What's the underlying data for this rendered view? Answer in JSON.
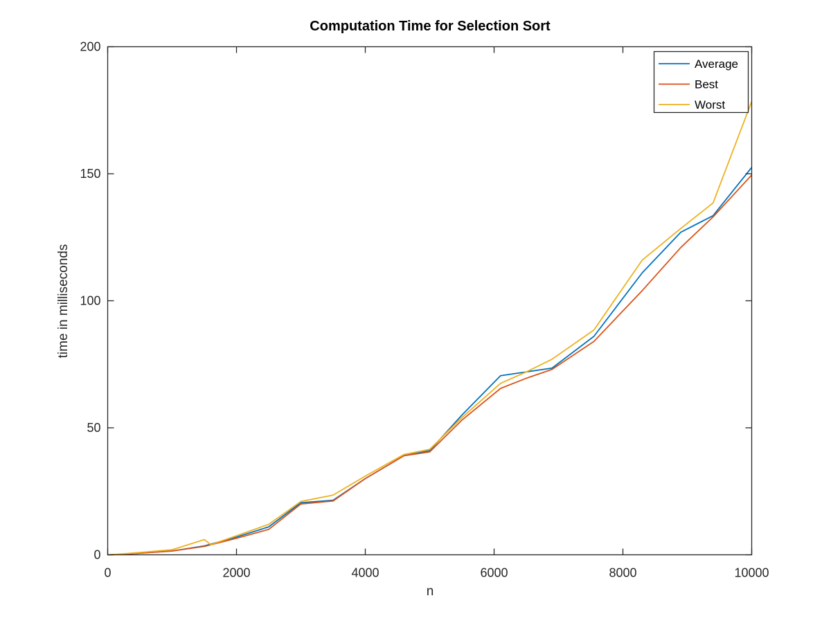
{
  "chart_data": {
    "type": "line",
    "title": "Computation Time for Selection Sort",
    "xlabel": "n",
    "ylabel": "time in milliseconds",
    "xlim": [
      0,
      10000
    ],
    "ylim": [
      0,
      200
    ],
    "xticks": [
      0,
      2000,
      4000,
      6000,
      8000,
      10000
    ],
    "yticks": [
      0,
      50,
      100,
      150,
      200
    ],
    "xtick_labels": [
      "0",
      "2000",
      "4000",
      "6000",
      "8000",
      "10000"
    ],
    "ytick_labels": [
      "0",
      "50",
      "100",
      "150",
      "200"
    ],
    "grid": false,
    "legend_position": "top-right",
    "series": [
      {
        "name": "Average",
        "color": "#0072BD",
        "x": [
          0,
          300,
          1000,
          1500,
          2000,
          2500,
          3000,
          3500,
          4000,
          4600,
          5000,
          5500,
          6100,
          6500,
          6900,
          7550,
          8300,
          8900,
          9400,
          10000
        ],
        "y": [
          0,
          0.3,
          1.5,
          3.5,
          7,
          11,
          20.5,
          21.5,
          30,
          39,
          41,
          55,
          70.5,
          72,
          73.5,
          86,
          111,
          127,
          133.5,
          152.5
        ]
      },
      {
        "name": "Best",
        "color": "#D95319",
        "x": [
          0,
          300,
          1000,
          1500,
          2000,
          2500,
          3000,
          3500,
          4000,
          4600,
          5000,
          5500,
          6100,
          6500,
          6900,
          7550,
          8300,
          8900,
          9400,
          10000
        ],
        "y": [
          0,
          0.3,
          1.5,
          3.3,
          6.5,
          10,
          20,
          21.2,
          30,
          39,
          40.5,
          53,
          65.5,
          69.5,
          73,
          84,
          104,
          121,
          133,
          149.5
        ]
      },
      {
        "name": "Worst",
        "color": "#EDB120",
        "x": [
          0,
          300,
          1000,
          1500,
          1600,
          2000,
          2500,
          3000,
          3500,
          4000,
          4600,
          5000,
          5500,
          6100,
          6500,
          6900,
          7550,
          8300,
          8900,
          9400,
          10000
        ],
        "y": [
          0,
          0.5,
          2,
          6,
          4,
          7.5,
          12,
          21,
          23.5,
          31,
          39.5,
          41.5,
          54,
          67.5,
          72,
          77,
          88.5,
          116,
          128.5,
          138.5,
          178.5
        ]
      }
    ]
  }
}
